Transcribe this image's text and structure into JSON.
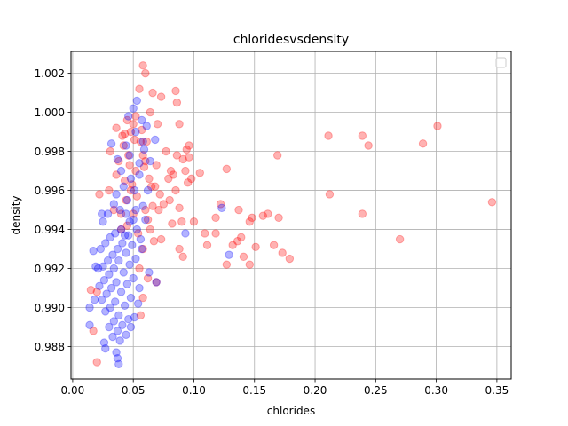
{
  "chart_data": {
    "type": "scatter",
    "title": "chloridesvsdensity",
    "xlabel": "chlorides",
    "ylabel": "density",
    "xlim": [
      -0.0014,
      0.3618
    ],
    "ylim": [
      0.98634,
      1.00312
    ],
    "xticks": [
      0.0,
      0.05,
      0.1,
      0.15,
      0.2,
      0.25,
      0.3,
      0.35
    ],
    "xtick_labels": [
      "0.00",
      "0.05",
      "0.10",
      "0.15",
      "0.20",
      "0.25",
      "0.30",
      "0.35"
    ],
    "yticks": [
      0.988,
      0.99,
      0.992,
      0.994,
      0.996,
      0.998,
      1.0,
      1.002
    ],
    "ytick_labels": [
      "0.988",
      "0.990",
      "0.992",
      "0.994",
      "0.996",
      "0.998",
      "1.000",
      "1.002"
    ],
    "grid": true,
    "legend": {
      "placement": "upper-right",
      "entries": []
    },
    "series": [
      {
        "color": "#ff0000",
        "opacity": 0.3,
        "points": [
          [
            0.058,
            1.0024
          ],
          [
            0.06,
            1.002
          ],
          [
            0.055,
            1.0012
          ],
          [
            0.066,
            1.001
          ],
          [
            0.085,
            1.0011
          ],
          [
            0.073,
            1.0008
          ],
          [
            0.086,
            1.0005
          ],
          [
            0.064,
            1.0
          ],
          [
            0.045,
            0.9996
          ],
          [
            0.05,
            0.9994
          ],
          [
            0.07,
            0.9994
          ],
          [
            0.088,
            0.9994
          ],
          [
            0.036,
            0.9992
          ],
          [
            0.041,
            0.9988
          ],
          [
            0.096,
            0.9983
          ],
          [
            0.094,
            0.9981
          ],
          [
            0.077,
            0.998
          ],
          [
            0.086,
            0.9978
          ],
          [
            0.091,
            0.9976
          ],
          [
            0.096,
            0.9977
          ],
          [
            0.06,
            0.9975
          ],
          [
            0.069,
            0.9973
          ],
          [
            0.081,
            0.997
          ],
          [
            0.093,
            0.997
          ],
          [
            0.105,
            0.9969
          ],
          [
            0.127,
            0.9971
          ],
          [
            0.169,
            0.9978
          ],
          [
            0.211,
            0.9988
          ],
          [
            0.239,
            0.9988
          ],
          [
            0.244,
            0.9983
          ],
          [
            0.289,
            0.9984
          ],
          [
            0.301,
            0.9993
          ],
          [
            0.079,
            0.9966
          ],
          [
            0.095,
            0.9964
          ],
          [
            0.098,
            0.9966
          ],
          [
            0.065,
            0.9962
          ],
          [
            0.072,
            0.9958
          ],
          [
            0.085,
            0.996
          ],
          [
            0.022,
            0.9958
          ],
          [
            0.03,
            0.996
          ],
          [
            0.075,
            0.9953
          ],
          [
            0.088,
            0.9951
          ],
          [
            0.122,
            0.9953
          ],
          [
            0.137,
            0.995
          ],
          [
            0.212,
            0.9958
          ],
          [
            0.346,
            0.9954
          ],
          [
            0.118,
            0.9946
          ],
          [
            0.1,
            0.9944
          ],
          [
            0.09,
            0.9944
          ],
          [
            0.082,
            0.9943
          ],
          [
            0.148,
            0.9946
          ],
          [
            0.157,
            0.9947
          ],
          [
            0.161,
            0.9948
          ],
          [
            0.17,
            0.9946
          ],
          [
            0.239,
            0.9948
          ],
          [
            0.146,
            0.9944
          ],
          [
            0.109,
            0.9938
          ],
          [
            0.118,
            0.9938
          ],
          [
            0.132,
            0.9932
          ],
          [
            0.136,
            0.9934
          ],
          [
            0.139,
            0.9936
          ],
          [
            0.151,
            0.9931
          ],
          [
            0.166,
            0.9932
          ],
          [
            0.173,
            0.9928
          ],
          [
            0.179,
            0.9925
          ],
          [
            0.27,
            0.9935
          ],
          [
            0.111,
            0.9932
          ],
          [
            0.088,
            0.993
          ],
          [
            0.091,
            0.9926
          ],
          [
            0.127,
            0.9922
          ],
          [
            0.141,
            0.9926
          ],
          [
            0.146,
            0.9922
          ],
          [
            0.069,
            0.9913
          ],
          [
            0.058,
            0.9905
          ],
          [
            0.056,
            0.9896
          ],
          [
            0.015,
            0.9909
          ],
          [
            0.02,
            0.9908
          ],
          [
            0.017,
            0.9888
          ],
          [
            0.02,
            0.9872
          ],
          [
            0.04,
            0.9948
          ],
          [
            0.048,
            0.996
          ],
          [
            0.052,
            0.997
          ],
          [
            0.056,
            0.9985
          ],
          [
            0.046,
            0.9978
          ],
          [
            0.043,
            0.9965
          ],
          [
            0.05,
            0.9948
          ],
          [
            0.054,
            0.9938
          ],
          [
            0.058,
            0.993
          ],
          [
            0.062,
            0.9945
          ],
          [
            0.066,
            0.9952
          ],
          [
            0.063,
            0.9966
          ],
          [
            0.059,
            0.9972
          ],
          [
            0.038,
            0.9975
          ],
          [
            0.042,
            0.9983
          ],
          [
            0.048,
            0.999
          ],
          [
            0.052,
            0.9998
          ],
          [
            0.057,
            0.9991
          ],
          [
            0.061,
            0.9985
          ],
          [
            0.044,
            0.9955
          ],
          [
            0.04,
            0.994
          ],
          [
            0.034,
            0.995
          ],
          [
            0.036,
            0.9968
          ],
          [
            0.031,
            0.998
          ],
          [
            0.047,
            0.9973
          ],
          [
            0.053,
            0.9957
          ],
          [
            0.06,
            0.995
          ],
          [
            0.064,
            0.994
          ],
          [
            0.067,
            0.9934
          ],
          [
            0.055,
            0.992
          ],
          [
            0.062,
            0.9915
          ],
          [
            0.058,
            0.9978
          ],
          [
            0.051,
            0.9986
          ],
          [
            0.049,
            0.9963
          ],
          [
            0.045,
            0.9942
          ],
          [
            0.043,
            0.9989
          ],
          [
            0.068,
            0.9962
          ],
          [
            0.071,
            0.995
          ],
          [
            0.073,
            0.9935
          ],
          [
            0.08,
            0.9955
          ],
          [
            0.083,
            0.9968
          ]
        ]
      },
      {
        "color": "#0000ff",
        "opacity": 0.3,
        "points": [
          [
            0.053,
            1.0006
          ],
          [
            0.05,
            1.0002
          ],
          [
            0.046,
            0.9998
          ],
          [
            0.057,
            0.9996
          ],
          [
            0.061,
            0.9993
          ],
          [
            0.052,
            0.999
          ],
          [
            0.068,
            0.9986
          ],
          [
            0.058,
            0.9985
          ],
          [
            0.044,
            0.9983
          ],
          [
            0.032,
            0.9984
          ],
          [
            0.037,
            0.9976
          ],
          [
            0.04,
            0.997
          ],
          [
            0.047,
            0.9978
          ],
          [
            0.055,
            0.9974
          ],
          [
            0.048,
            0.9966
          ],
          [
            0.042,
            0.9962
          ],
          [
            0.036,
            0.9958
          ],
          [
            0.051,
            0.996
          ],
          [
            0.045,
            0.9955
          ],
          [
            0.039,
            0.995
          ],
          [
            0.034,
            0.9953
          ],
          [
            0.029,
            0.9948
          ],
          [
            0.025,
            0.9944
          ],
          [
            0.044,
            0.9948
          ],
          [
            0.052,
            0.995
          ],
          [
            0.058,
            0.9952
          ],
          [
            0.047,
            0.9944
          ],
          [
            0.04,
            0.994
          ],
          [
            0.035,
            0.9938
          ],
          [
            0.031,
            0.9936
          ],
          [
            0.027,
            0.9933
          ],
          [
            0.023,
            0.993
          ],
          [
            0.046,
            0.9937
          ],
          [
            0.053,
            0.994
          ],
          [
            0.041,
            0.9933
          ],
          [
            0.037,
            0.993
          ],
          [
            0.033,
            0.9927
          ],
          [
            0.029,
            0.9924
          ],
          [
            0.025,
            0.9921
          ],
          [
            0.021,
            0.992
          ],
          [
            0.044,
            0.9928
          ],
          [
            0.049,
            0.9932
          ],
          [
            0.056,
            0.9935
          ],
          [
            0.038,
            0.9924
          ],
          [
            0.034,
            0.992
          ],
          [
            0.03,
            0.9917
          ],
          [
            0.026,
            0.9914
          ],
          [
            0.022,
            0.9911
          ],
          [
            0.042,
            0.9918
          ],
          [
            0.047,
            0.9922
          ],
          [
            0.052,
            0.9925
          ],
          [
            0.036,
            0.9913
          ],
          [
            0.032,
            0.991
          ],
          [
            0.028,
            0.9907
          ],
          [
            0.024,
            0.9904
          ],
          [
            0.04,
            0.9908
          ],
          [
            0.045,
            0.9912
          ],
          [
            0.05,
            0.9915
          ],
          [
            0.035,
            0.9903
          ],
          [
            0.031,
            0.99
          ],
          [
            0.027,
            0.9898
          ],
          [
            0.038,
            0.9896
          ],
          [
            0.043,
            0.9901
          ],
          [
            0.048,
            0.9905
          ],
          [
            0.034,
            0.9893
          ],
          [
            0.03,
            0.989
          ],
          [
            0.041,
            0.9891
          ],
          [
            0.046,
            0.9894
          ],
          [
            0.037,
            0.9888
          ],
          [
            0.033,
            0.9885
          ],
          [
            0.039,
            0.9883
          ],
          [
            0.044,
            0.9886
          ],
          [
            0.014,
            0.99
          ],
          [
            0.014,
            0.9891
          ],
          [
            0.018,
            0.9904
          ],
          [
            0.017,
            0.9929
          ],
          [
            0.019,
            0.9921
          ],
          [
            0.024,
            0.9948
          ],
          [
            0.026,
            0.9882
          ],
          [
            0.027,
            0.9879
          ],
          [
            0.036,
            0.9877
          ],
          [
            0.037,
            0.9874
          ],
          [
            0.038,
            0.9871
          ],
          [
            0.055,
            0.991
          ],
          [
            0.063,
            0.9918
          ],
          [
            0.069,
            0.9913
          ],
          [
            0.093,
            0.9938
          ],
          [
            0.129,
            0.9927
          ],
          [
            0.123,
            0.9951
          ],
          [
            0.048,
            0.989
          ],
          [
            0.051,
            0.9895
          ],
          [
            0.054,
            0.9902
          ],
          [
            0.057,
            0.993
          ],
          [
            0.06,
            0.9945
          ],
          [
            0.062,
            0.996
          ],
          [
            0.064,
            0.9975
          ],
          [
            0.059,
            0.9981
          ],
          [
            0.055,
            0.9968
          ],
          [
            0.05,
            0.9945
          ],
          [
            0.043,
            0.9937
          ]
        ]
      }
    ]
  }
}
